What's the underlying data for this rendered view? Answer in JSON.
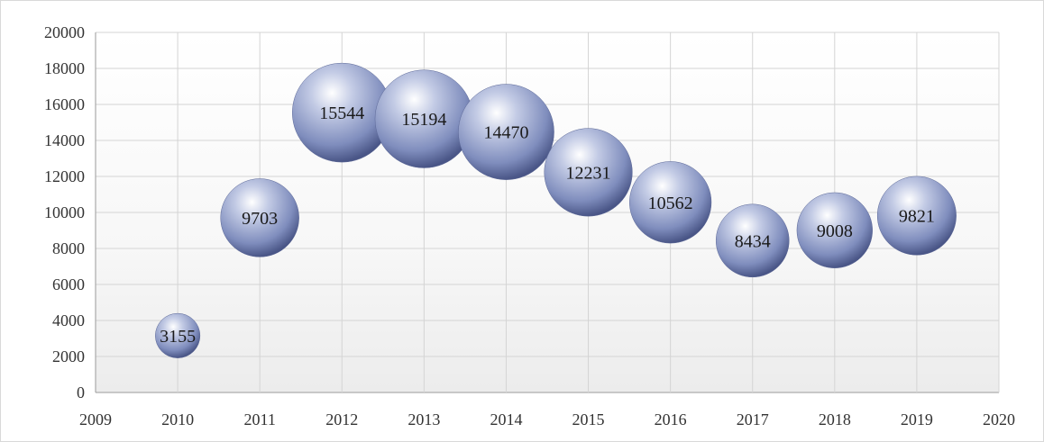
{
  "chart_data": {
    "type": "bubble",
    "title": "",
    "xlabel": "",
    "ylabel": "",
    "xlim": [
      2009,
      2020
    ],
    "ylim": [
      0,
      20000
    ],
    "x_ticks": [
      "2009",
      "2010",
      "2011",
      "2012",
      "2013",
      "2014",
      "2015",
      "2016",
      "2017",
      "2018",
      "2019",
      "2020"
    ],
    "y_ticks": [
      "0",
      "2000",
      "4000",
      "6000",
      "8000",
      "10000",
      "12000",
      "14000",
      "16000",
      "18000",
      "20000"
    ],
    "grid": true,
    "legend": "none",
    "bubble_color": "#8e9cc8",
    "points": [
      {
        "x": 2010,
        "y": 3155,
        "size": 3155,
        "label": "3155"
      },
      {
        "x": 2011,
        "y": 9703,
        "size": 9703,
        "label": "9703"
      },
      {
        "x": 2012,
        "y": 15544,
        "size": 15544,
        "label": "15544"
      },
      {
        "x": 2013,
        "y": 15194,
        "size": 15194,
        "label": "15194"
      },
      {
        "x": 2014,
        "y": 14470,
        "size": 14470,
        "label": "14470"
      },
      {
        "x": 2015,
        "y": 12231,
        "size": 12231,
        "label": "12231"
      },
      {
        "x": 2016,
        "y": 10562,
        "size": 10562,
        "label": "10562"
      },
      {
        "x": 2017,
        "y": 8434,
        "size": 8434,
        "label": "8434"
      },
      {
        "x": 2018,
        "y": 9008,
        "size": 9008,
        "label": "9008"
      },
      {
        "x": 2019,
        "y": 9821,
        "size": 9821,
        "label": "9821"
      }
    ]
  }
}
